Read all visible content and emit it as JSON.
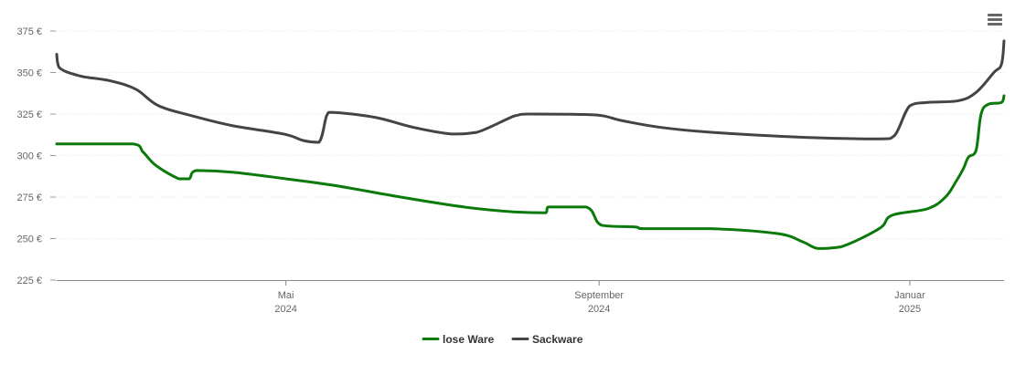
{
  "menu": {
    "icon": "hamburger-menu-icon"
  },
  "chart_data": {
    "type": "line",
    "title": "",
    "xlabel": "",
    "ylabel": "",
    "x_range": [
      "2024-02-01",
      "2025-02-07"
    ],
    "ylim": [
      225,
      375
    ],
    "y_ticks": [
      225,
      250,
      275,
      300,
      325,
      350,
      375
    ],
    "y_tick_format": "{v} €",
    "x_ticks": [
      {
        "date": "2024-05-01",
        "label": [
          "Mai",
          "2024"
        ]
      },
      {
        "date": "2024-09-01",
        "label": [
          "September",
          "2024"
        ]
      },
      {
        "date": "2025-01-01",
        "label": [
          "Januar",
          "2025"
        ]
      }
    ],
    "grid": "horizontal-dotted",
    "legend_position": "bottom-center",
    "series": [
      {
        "name": "lose Ware",
        "color": "#0a7a0a",
        "points": [
          [
            "2024-02-01",
            307
          ],
          [
            "2024-03-02",
            307
          ],
          [
            "2024-03-06",
            302
          ],
          [
            "2024-03-11",
            294
          ],
          [
            "2024-03-20",
            286
          ],
          [
            "2024-03-24",
            286
          ],
          [
            "2024-03-27",
            291
          ],
          [
            "2024-04-10",
            290
          ],
          [
            "2024-05-01",
            286
          ],
          [
            "2024-05-20",
            282
          ],
          [
            "2024-06-15",
            275
          ],
          [
            "2024-07-10",
            269
          ],
          [
            "2024-07-30",
            266
          ],
          [
            "2024-08-11",
            265.5
          ],
          [
            "2024-08-12",
            269
          ],
          [
            "2024-08-27",
            269
          ],
          [
            "2024-09-02",
            258
          ],
          [
            "2024-09-15",
            257
          ],
          [
            "2024-09-18",
            256
          ],
          [
            "2024-10-15",
            256
          ],
          [
            "2024-11-10",
            253
          ],
          [
            "2024-11-20",
            248
          ],
          [
            "2024-11-26",
            244
          ],
          [
            "2024-12-05",
            245
          ],
          [
            "2024-12-20",
            256
          ],
          [
            "2024-12-25",
            264
          ],
          [
            "2025-01-08",
            268
          ],
          [
            "2025-01-15",
            275
          ],
          [
            "2025-01-19",
            284
          ],
          [
            "2025-01-22",
            292
          ],
          [
            "2025-01-24",
            299
          ],
          [
            "2025-01-27",
            303
          ],
          [
            "2025-01-29",
            325
          ],
          [
            "2025-02-01",
            331
          ],
          [
            "2025-02-06",
            332
          ],
          [
            "2025-02-07",
            336
          ]
        ]
      },
      {
        "name": "Sackware",
        "color": "#444444",
        "points": [
          [
            "2024-02-01",
            361
          ],
          [
            "2024-02-02",
            353
          ],
          [
            "2024-02-10",
            348
          ],
          [
            "2024-02-22",
            345
          ],
          [
            "2024-03-03",
            340
          ],
          [
            "2024-03-12",
            330
          ],
          [
            "2024-03-25",
            324
          ],
          [
            "2024-04-10",
            318
          ],
          [
            "2024-04-30",
            313
          ],
          [
            "2024-05-08",
            309
          ],
          [
            "2024-05-14",
            308
          ],
          [
            "2024-05-17",
            324
          ],
          [
            "2024-05-19",
            326
          ],
          [
            "2024-06-05",
            323
          ],
          [
            "2024-06-20",
            317
          ],
          [
            "2024-07-05",
            313
          ],
          [
            "2024-07-15",
            314
          ],
          [
            "2024-07-30",
            324
          ],
          [
            "2024-08-05",
            325
          ],
          [
            "2024-08-30",
            324.5
          ],
          [
            "2024-09-10",
            321
          ],
          [
            "2024-09-25",
            317
          ],
          [
            "2024-10-15",
            314
          ],
          [
            "2024-11-20",
            311
          ],
          [
            "2024-12-20",
            310
          ],
          [
            "2024-12-26",
            312
          ],
          [
            "2025-01-01",
            330
          ],
          [
            "2025-01-08",
            332
          ],
          [
            "2025-01-20",
            333
          ],
          [
            "2025-01-27",
            338
          ],
          [
            "2025-02-03",
            350
          ],
          [
            "2025-02-06",
            355
          ],
          [
            "2025-02-07",
            369
          ]
        ]
      }
    ]
  }
}
